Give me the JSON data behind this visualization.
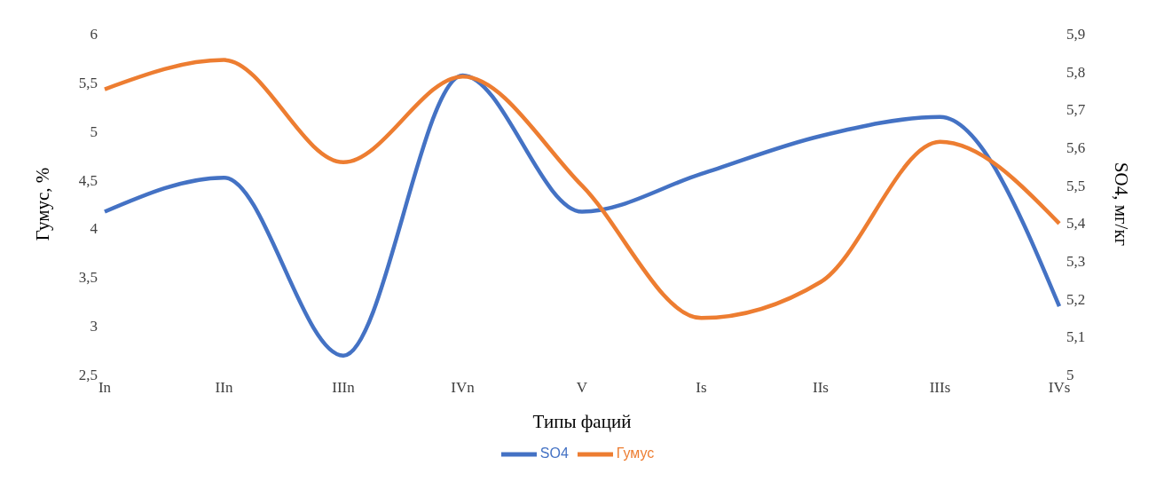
{
  "chart_data": {
    "type": "line",
    "xlabel": "Типы фаций",
    "ylabel": "Гумус,  %",
    "y2label": "SO4, мг/кг",
    "categories": [
      "In",
      "IIn",
      "IIIn",
      "IVn",
      "V",
      "Is",
      "IIs",
      "IIIs",
      "IVs"
    ],
    "series": [
      {
        "name": "SO4",
        "color": "#4472c4",
        "axis": "y2",
        "values": [
          5.43,
          5.52,
          5.05,
          5.79,
          5.43,
          5.53,
          5.63,
          5.68,
          5.18
        ]
      },
      {
        "name": "Гумус",
        "color": "#ed7d31",
        "values": [
          5.43,
          5.73,
          4.68,
          5.56,
          4.44,
          3.08,
          3.45,
          4.89,
          4.05
        ]
      }
    ],
    "ylim": [
      2.5,
      6
    ],
    "yticks": [
      {
        "value": 2.5,
        "label": "2,5"
      },
      3,
      {
        "value": 3.5,
        "label": "3,5"
      },
      4,
      {
        "value": 4.5,
        "label": "4,5"
      },
      5,
      {
        "value": 5.5,
        "label": "5,5"
      },
      6
    ],
    "y2lim": [
      5,
      5.9
    ],
    "y2ticks": [
      5,
      {
        "value": 5.1,
        "label": "5,1"
      },
      {
        "value": 5.2,
        "label": "5,2"
      },
      {
        "value": 5.3,
        "label": "5,3"
      },
      {
        "value": 5.4,
        "label": "5,4"
      },
      {
        "value": 5.5,
        "label": "5,5"
      },
      {
        "value": 5.6,
        "label": "5,6"
      },
      {
        "value": 5.7,
        "label": "5,7"
      },
      {
        "value": 5.8,
        "label": "5,8"
      },
      {
        "value": 5.9,
        "label": "5,9"
      }
    ],
    "legend": "bottom",
    "marker": "none",
    "line_style": "solid",
    "grid": false
  }
}
